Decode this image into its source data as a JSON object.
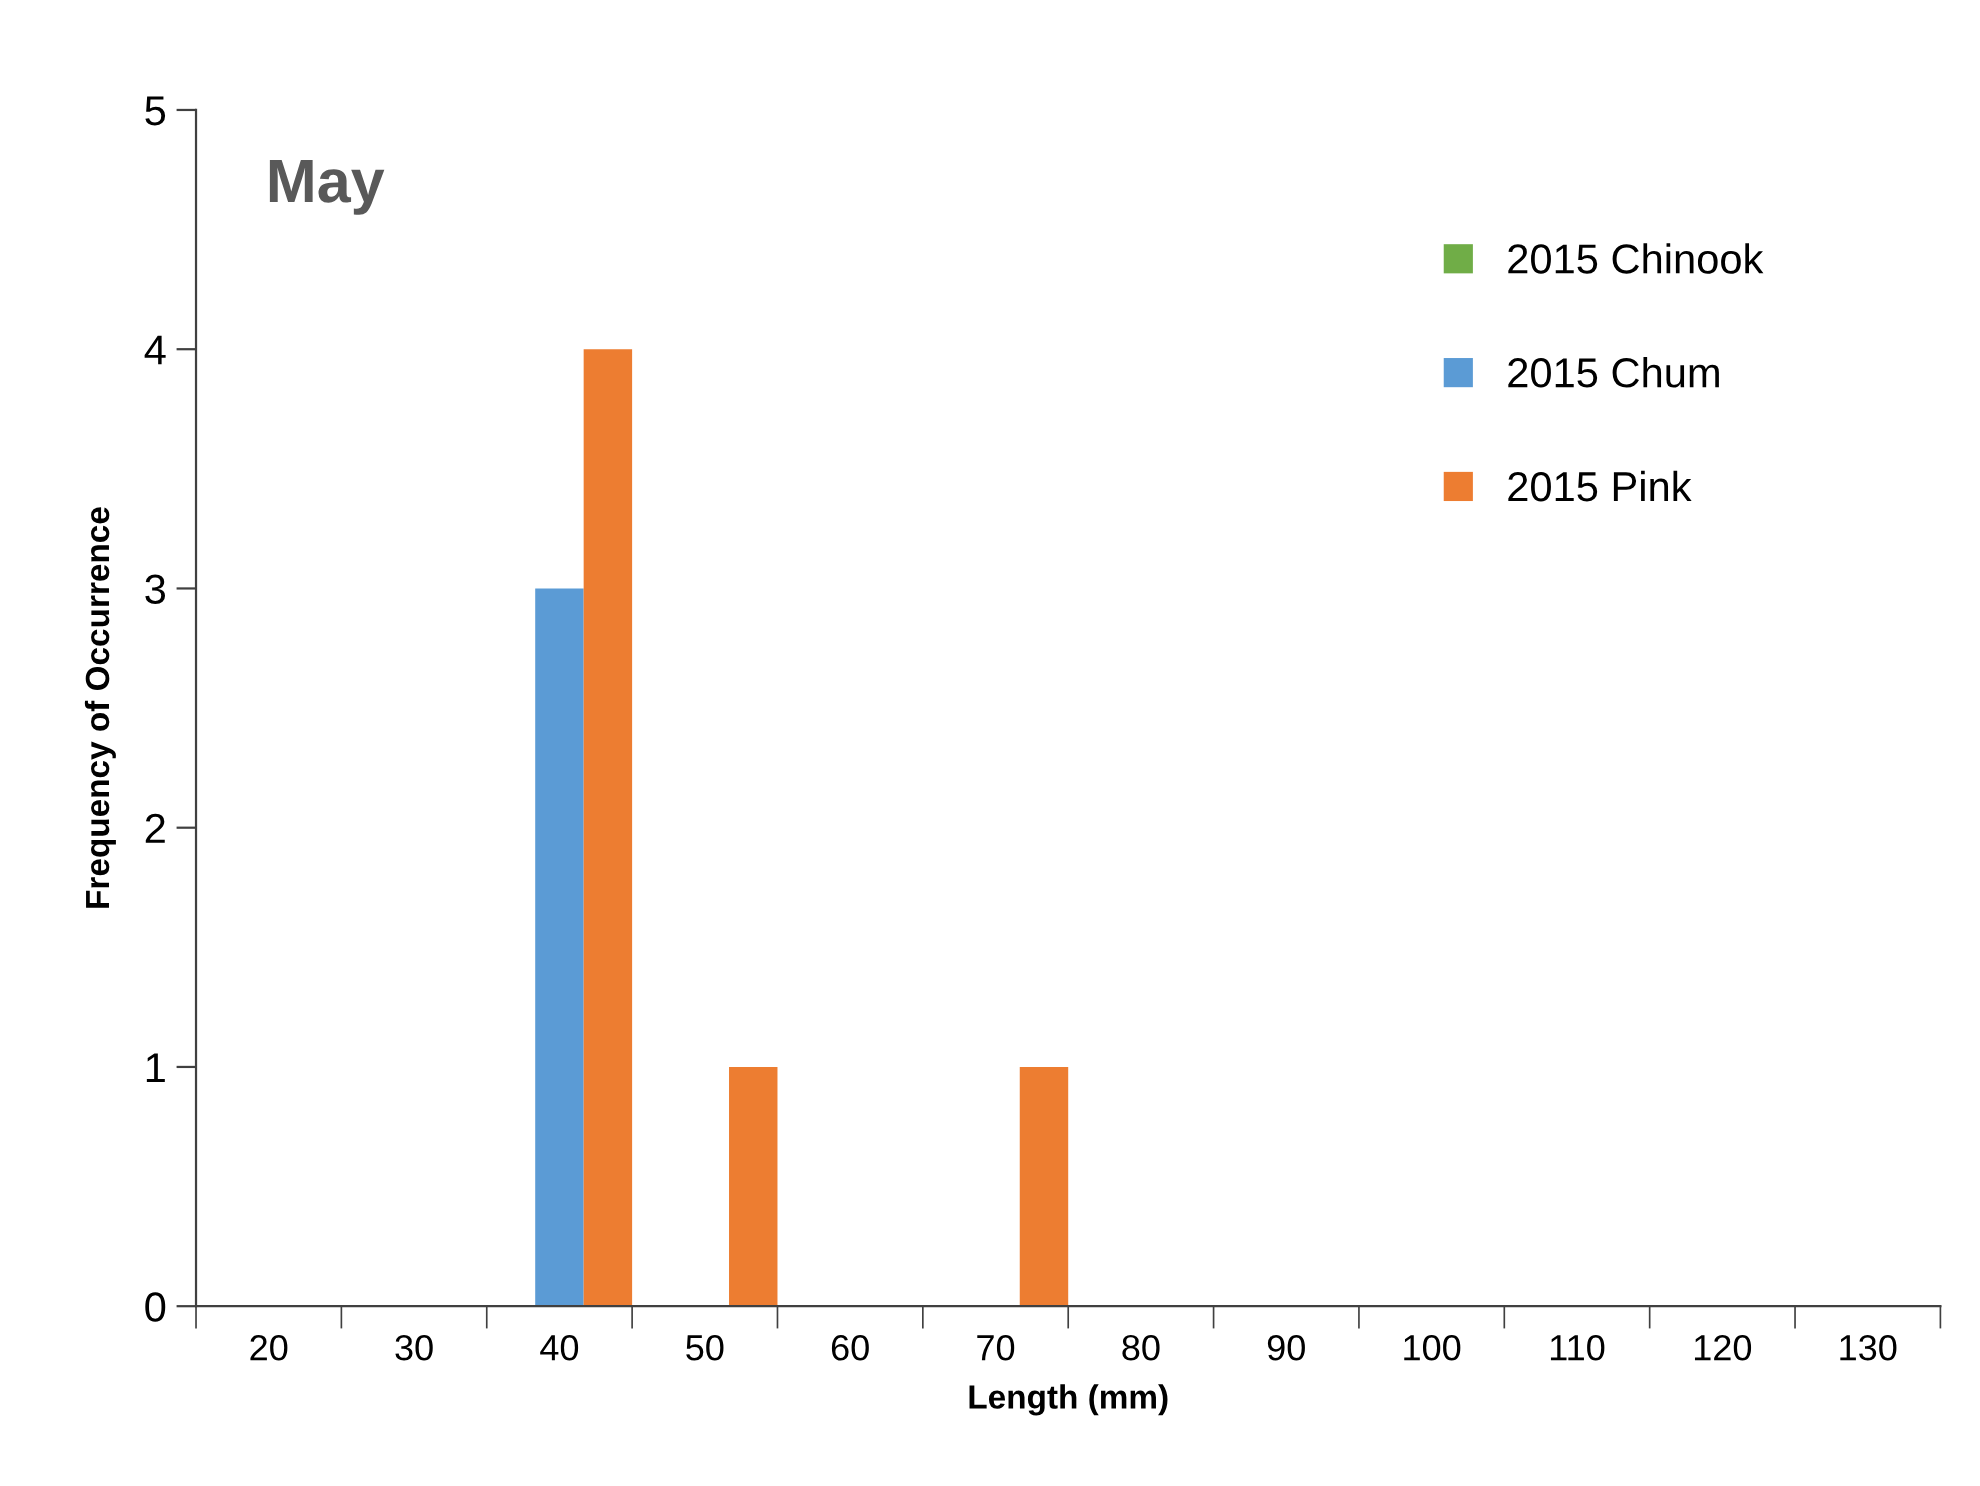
{
  "chart_data": {
    "type": "bar",
    "title": "May",
    "xlabel": "Length (mm)",
    "ylabel": "Frequency of Occurrence",
    "categories": [
      "20",
      "30",
      "40",
      "50",
      "60",
      "70",
      "80",
      "90",
      "100",
      "110",
      "120",
      "130"
    ],
    "series": [
      {
        "name": "2015 Chinook",
        "color": "#70ad47",
        "values": [
          0,
          0,
          0,
          0,
          0,
          0,
          0,
          0,
          0,
          0,
          0,
          0
        ]
      },
      {
        "name": "2015 Chum",
        "color": "#5b9bd5",
        "values": [
          0,
          0,
          3,
          0,
          0,
          0,
          0,
          0,
          0,
          0,
          0,
          0
        ]
      },
      {
        "name": "2015 Pink",
        "color": "#ed7d31",
        "values": [
          0,
          0,
          4,
          1,
          0,
          1,
          0,
          0,
          0,
          0,
          0,
          0
        ]
      }
    ],
    "ylim": [
      0,
      5
    ],
    "yticks": [
      0,
      1,
      2,
      3,
      4,
      5
    ],
    "grid": false,
    "legend": "top right"
  }
}
